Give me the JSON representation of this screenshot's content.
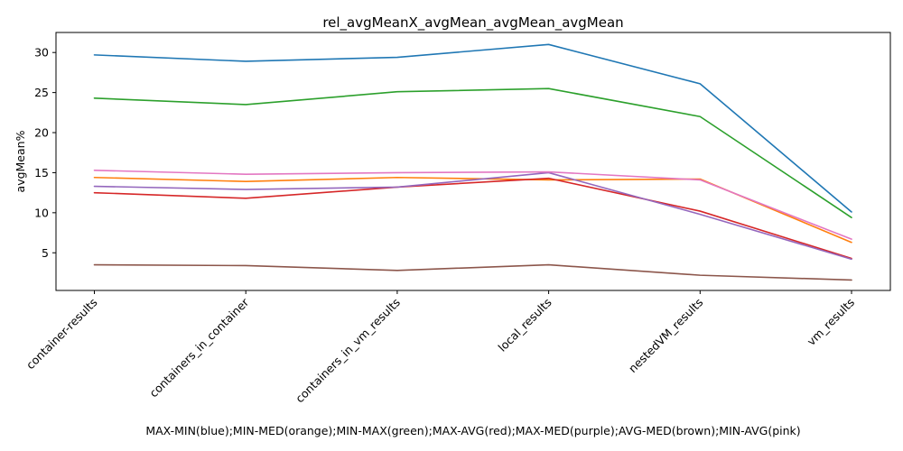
{
  "chart_data": {
    "type": "line",
    "title": "rel_avgMeanX_avgMean_avgMean_avgMean",
    "xlabel": "MAX-MIN(blue);MIN-MED(orange);MIN-MAX(green);MAX-AVG(red);MAX-MED(purple);AVG-MED(brown);MIN-AVG(pink)",
    "ylabel": "avgMean%",
    "categories": [
      "container-results",
      "containers_in_container",
      "containers_in_vm_results",
      "local_results",
      "nestedVM_results",
      "vm_results"
    ],
    "ylim": [
      0.3,
      32.5
    ],
    "yticks": [
      5,
      10,
      15,
      20,
      25,
      30
    ],
    "grid": false,
    "legend": "none",
    "series": [
      {
        "color": "#1f77b4",
        "values": [
          29.7,
          28.9,
          29.4,
          31.0,
          26.1,
          10.1
        ]
      },
      {
        "color": "#ff7f0e",
        "values": [
          14.4,
          13.9,
          14.4,
          14.1,
          14.2,
          6.3
        ]
      },
      {
        "color": "#2ca02c",
        "values": [
          24.3,
          23.5,
          25.1,
          25.5,
          22.0,
          9.4
        ]
      },
      {
        "color": "#d62728",
        "values": [
          12.5,
          11.8,
          13.2,
          14.3,
          10.2,
          4.3
        ]
      },
      {
        "color": "#9467bd",
        "values": [
          13.3,
          12.9,
          13.2,
          15.0,
          9.8,
          4.2
        ]
      },
      {
        "color": "#8c564b",
        "values": [
          3.5,
          3.4,
          2.8,
          3.5,
          2.2,
          1.6
        ]
      },
      {
        "color": "#e377c2",
        "values": [
          15.3,
          14.8,
          15.0,
          15.1,
          14.1,
          6.7
        ]
      }
    ]
  }
}
